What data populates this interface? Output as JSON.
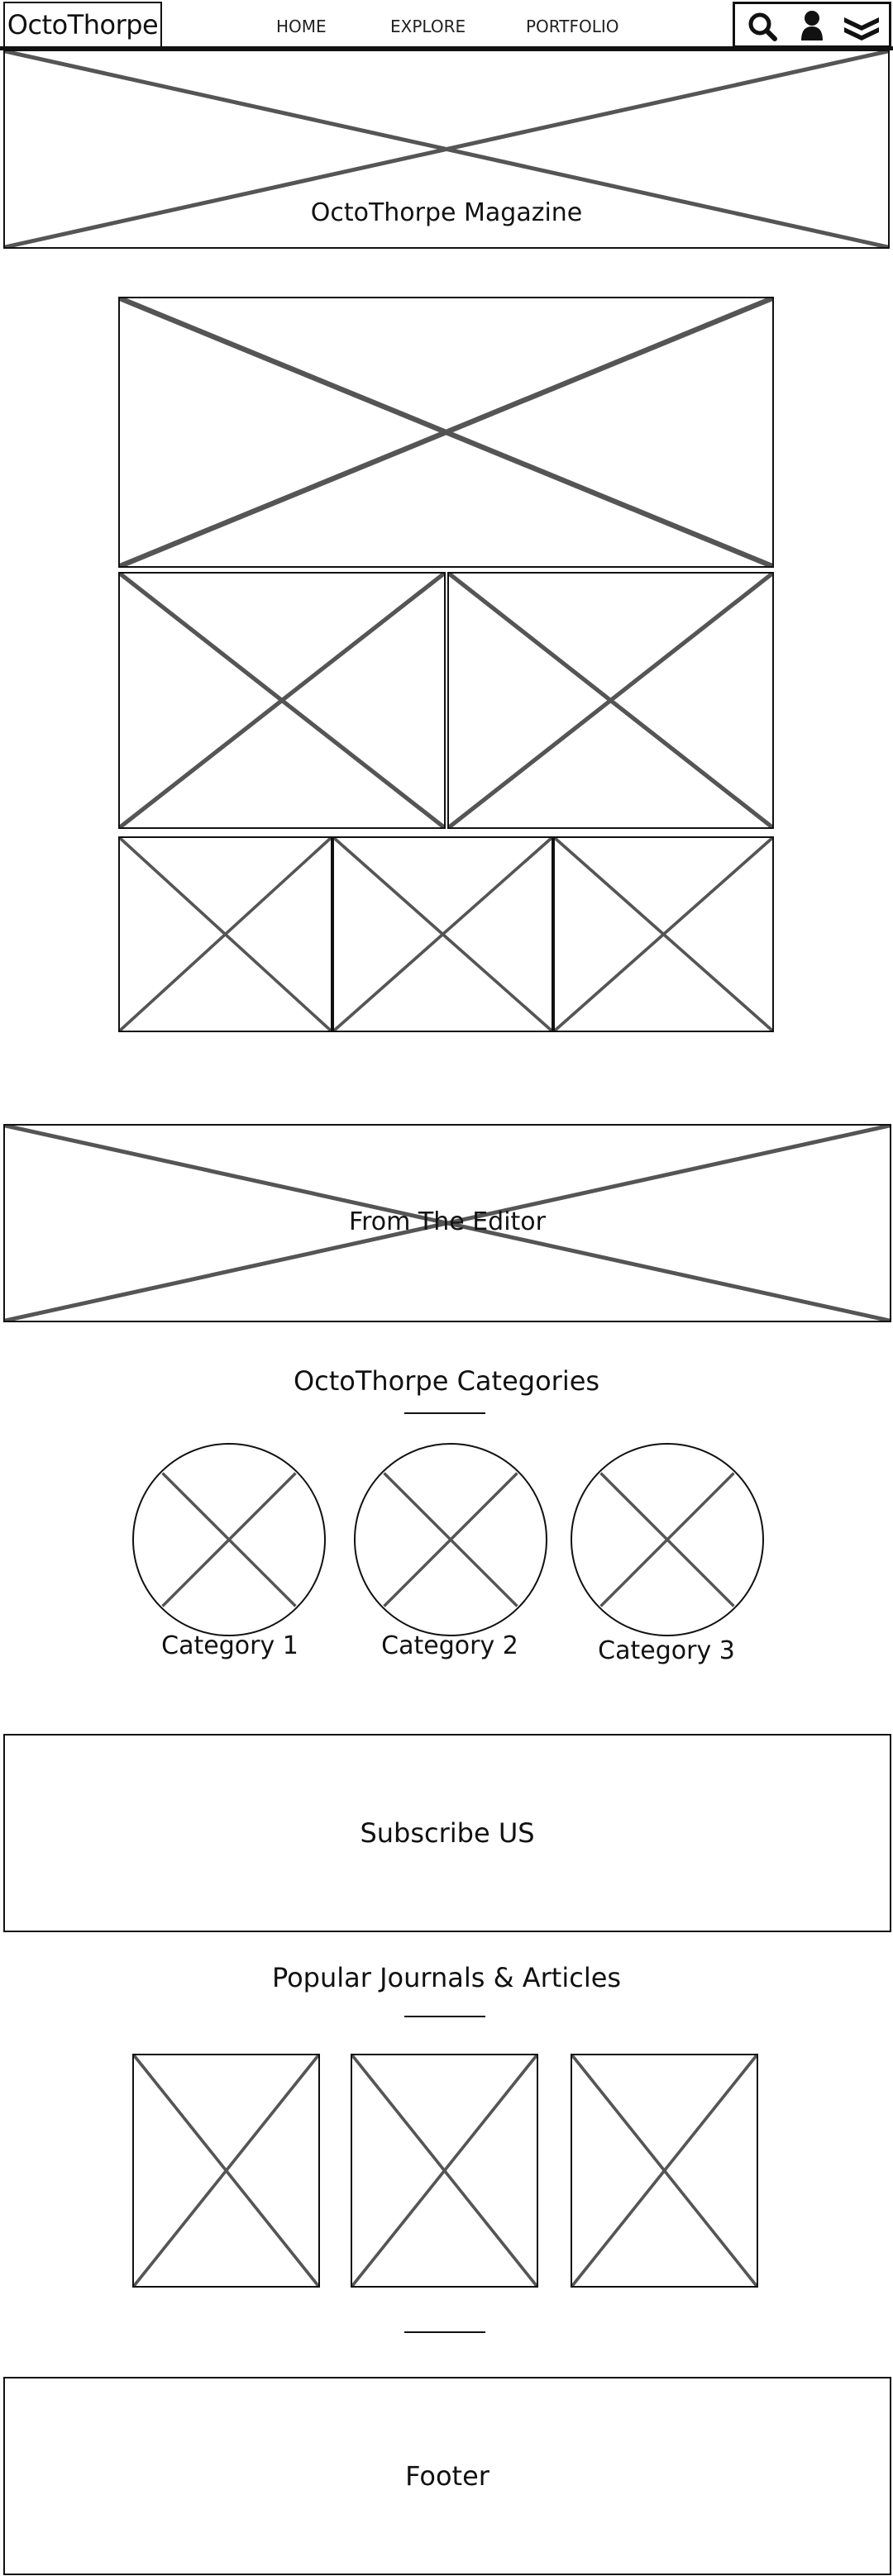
{
  "header": {
    "logo": "OctoThorpe",
    "nav": [
      "HOME",
      "EXPLORE",
      "PORTFOLIO"
    ],
    "icons": [
      "search-icon",
      "user-icon",
      "layers-icon"
    ]
  },
  "hero": {
    "title": "OctoThorpe Magazine"
  },
  "editor": {
    "title": "From The Editor"
  },
  "categories": {
    "title": "OctoThorpe Categories",
    "items": [
      "Category 1",
      "Category 2",
      "Category 3"
    ]
  },
  "subscribe": {
    "label": "Subscribe US"
  },
  "popular": {
    "title": "Popular Journals & Articles"
  },
  "footer": {
    "label": "Footer"
  }
}
